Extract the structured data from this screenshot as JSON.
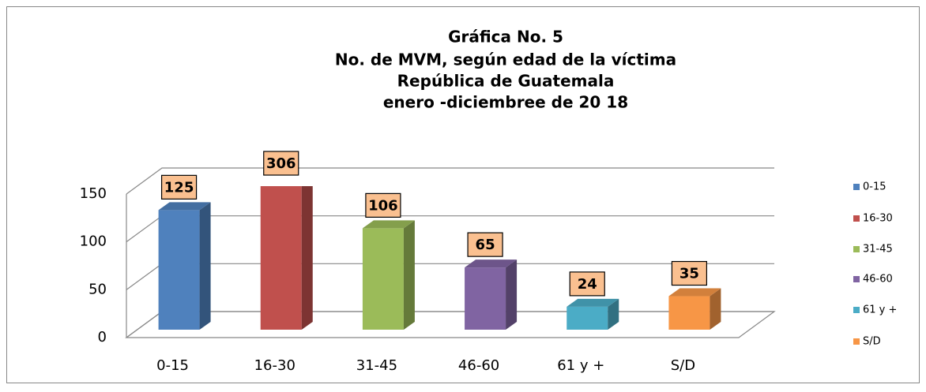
{
  "chart_data": {
    "type": "bar3d",
    "title": [
      "Gráfica No. 5",
      "No. de MVM, según edad de la víctima",
      "República de Guatemala",
      "enero -diciembree de 20 18"
    ],
    "categories": [
      "0-15",
      "16-30",
      "31-45",
      "46-60",
      "61 y +",
      "S/D"
    ],
    "values": [
      125,
      306,
      106,
      65,
      24,
      35
    ],
    "colors": [
      "#4f81bd",
      "#c0504d",
      "#9bbb59",
      "#8064a2",
      "#4bacc6",
      "#f79646"
    ],
    "ylim": [
      0,
      150
    ],
    "yticks": [
      0,
      50,
      100,
      150
    ],
    "grid": true,
    "legend": "right"
  }
}
